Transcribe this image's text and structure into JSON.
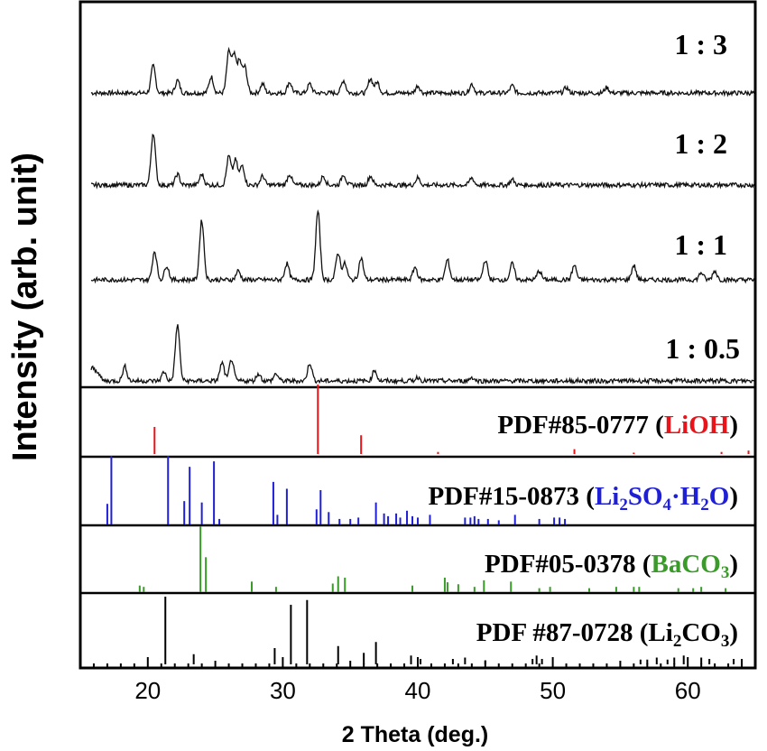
{
  "chart_data": {
    "type": "line",
    "xlabel": "2 Theta (deg.)",
    "ylabel": "Intensity (arb. unit)",
    "xlim": [
      15,
      65
    ],
    "xticks": [
      20,
      30,
      40,
      50,
      60
    ],
    "colors": {
      "frame": "#000000",
      "LiOH": "#e8141a",
      "Li2SO4": "#1f1fd6",
      "BaCO3": "#3a9a2a",
      "Li2CO3": "#000000"
    },
    "series": [
      {
        "name": "1 : 3",
        "peaks": [
          [
            20.4,
            30
          ],
          [
            22.2,
            14
          ],
          [
            24.7,
            18
          ],
          [
            26.0,
            45
          ],
          [
            26.4,
            40
          ],
          [
            26.8,
            34
          ],
          [
            27.2,
            28
          ],
          [
            28.5,
            10
          ],
          [
            30.5,
            12
          ],
          [
            32.0,
            10
          ],
          [
            34.5,
            14
          ],
          [
            36.5,
            16
          ],
          [
            37.0,
            12
          ],
          [
            40.0,
            8
          ],
          [
            44.0,
            10
          ],
          [
            47.0,
            8
          ],
          [
            51.0,
            6
          ],
          [
            54.0,
            6
          ]
        ]
      },
      {
        "name": "1 : 2",
        "peaks": [
          [
            20.4,
            58
          ],
          [
            22.2,
            12
          ],
          [
            24.0,
            12
          ],
          [
            26.0,
            32
          ],
          [
            26.5,
            28
          ],
          [
            27.0,
            22
          ],
          [
            28.5,
            10
          ],
          [
            30.5,
            12
          ],
          [
            33.0,
            10
          ],
          [
            34.5,
            12
          ],
          [
            36.5,
            10
          ],
          [
            40.0,
            8
          ],
          [
            44.0,
            8
          ],
          [
            47.0,
            6
          ]
        ]
      },
      {
        "name": "1 : 1",
        "peaks": [
          [
            20.5,
            32
          ],
          [
            21.4,
            16
          ],
          [
            24.0,
            66
          ],
          [
            26.7,
            10
          ],
          [
            30.3,
            18
          ],
          [
            32.6,
            76
          ],
          [
            34.1,
            30
          ],
          [
            34.6,
            18
          ],
          [
            35.8,
            24
          ],
          [
            39.8,
            14
          ],
          [
            42.2,
            22
          ],
          [
            45.0,
            22
          ],
          [
            47.0,
            18
          ],
          [
            49.0,
            10
          ],
          [
            51.6,
            16
          ],
          [
            56.0,
            16
          ],
          [
            61.0,
            8
          ],
          [
            62.0,
            10
          ]
        ]
      },
      {
        "name": "1 : 0.5",
        "peaks": [
          [
            15.9,
            14
          ],
          [
            16.3,
            10
          ],
          [
            18.3,
            16
          ],
          [
            21.2,
            10
          ],
          [
            22.2,
            62
          ],
          [
            25.5,
            20
          ],
          [
            26.2,
            24
          ],
          [
            28.2,
            8
          ],
          [
            29.5,
            8
          ],
          [
            32.0,
            20
          ],
          [
            36.8,
            12
          ],
          [
            40.0,
            4
          ],
          [
            44.0,
            4
          ]
        ]
      }
    ],
    "references": [
      {
        "label": "PDF#85-0777 (LiOH)",
        "card": "PDF#85-0777",
        "compound": "LiOH",
        "color": "#e8141a",
        "lines": [
          [
            20.5,
            39
          ],
          [
            32.6,
            100
          ],
          [
            35.8,
            27
          ],
          [
            41.5,
            3
          ],
          [
            51.6,
            7
          ],
          [
            56.0,
            2
          ],
          [
            62.5,
            3
          ],
          [
            64.5,
            5
          ]
        ]
      },
      {
        "label": "PDF#15-0873 (Li2SO4·H2O)",
        "card": "PDF#15-0873",
        "compound_parts": [
          "Li",
          "2",
          "SO",
          "4",
          "·H",
          "2",
          "O"
        ],
        "color": "#1f1fd6",
        "lines": [
          [
            17.0,
            30
          ],
          [
            17.3,
            100
          ],
          [
            21.5,
            100
          ],
          [
            22.7,
            34
          ],
          [
            23.1,
            84
          ],
          [
            24.0,
            32
          ],
          [
            24.9,
            92
          ],
          [
            25.3,
            8
          ],
          [
            29.3,
            62
          ],
          [
            29.6,
            14
          ],
          [
            30.3,
            52
          ],
          [
            32.5,
            22
          ],
          [
            32.8,
            50
          ],
          [
            33.4,
            18
          ],
          [
            34.2,
            8
          ],
          [
            35.0,
            8
          ],
          [
            35.6,
            10
          ],
          [
            36.9,
            32
          ],
          [
            37.5,
            16
          ],
          [
            37.8,
            12
          ],
          [
            38.4,
            16
          ],
          [
            38.7,
            10
          ],
          [
            39.2,
            20
          ],
          [
            39.6,
            12
          ],
          [
            40.0,
            10
          ],
          [
            40.9,
            14
          ],
          [
            43.5,
            10
          ],
          [
            43.9,
            10
          ],
          [
            44.2,
            12
          ],
          [
            44.5,
            8
          ],
          [
            45.2,
            8
          ],
          [
            46.0,
            6
          ],
          [
            47.2,
            14
          ],
          [
            49.0,
            8
          ],
          [
            50.1,
            10
          ],
          [
            50.5,
            10
          ],
          [
            50.9,
            8
          ]
        ]
      },
      {
        "label": "PDF#05-0378 (BaCO3)",
        "card": "PDF#05-0378",
        "compound_parts": [
          "BaCO",
          "3"
        ],
        "color": "#3a9a2a",
        "lines": [
          [
            19.4,
            10
          ],
          [
            19.7,
            8
          ],
          [
            23.9,
            100
          ],
          [
            24.3,
            53
          ],
          [
            27.7,
            16
          ],
          [
            29.5,
            8
          ],
          [
            33.7,
            13
          ],
          [
            34.1,
            24
          ],
          [
            34.6,
            22
          ],
          [
            39.6,
            10
          ],
          [
            42.0,
            22
          ],
          [
            42.2,
            15
          ],
          [
            43.0,
            12
          ],
          [
            44.2,
            8
          ],
          [
            44.9,
            18
          ],
          [
            46.9,
            16
          ],
          [
            49.0,
            6
          ],
          [
            49.8,
            8
          ],
          [
            52.7,
            6
          ],
          [
            54.7,
            8
          ],
          [
            56.0,
            8
          ],
          [
            56.4,
            8
          ],
          [
            59.3,
            6
          ],
          [
            60.4,
            6
          ],
          [
            61.0,
            8
          ],
          [
            62.8,
            6
          ]
        ]
      },
      {
        "label": "PDF #87-0728 (Li2CO3)",
        "card": "PDF #87-0728",
        "compound_parts": [
          "Li",
          "2",
          "CO",
          "3"
        ],
        "color": "#000000",
        "lines": [
          [
            21.3,
            100
          ],
          [
            23.4,
            15
          ],
          [
            29.4,
            24
          ],
          [
            30.6,
            88
          ],
          [
            31.8,
            95
          ],
          [
            34.1,
            27
          ],
          [
            36.0,
            17
          ],
          [
            36.9,
            33
          ],
          [
            39.5,
            13
          ],
          [
            40.2,
            8
          ],
          [
            42.6,
            8
          ],
          [
            43.5,
            10
          ],
          [
            45.0,
            6
          ],
          [
            48.5,
            8
          ],
          [
            48.8,
            13
          ],
          [
            49.2,
            8
          ],
          [
            56.5,
            7
          ],
          [
            57.0,
            7
          ],
          [
            57.7,
            10
          ],
          [
            58.5,
            7
          ],
          [
            59.0,
            10
          ],
          [
            59.7,
            13
          ],
          [
            61.0,
            10
          ],
          [
            61.6,
            8
          ],
          [
            63.4,
            8
          ],
          [
            64.0,
            8
          ]
        ]
      }
    ]
  }
}
